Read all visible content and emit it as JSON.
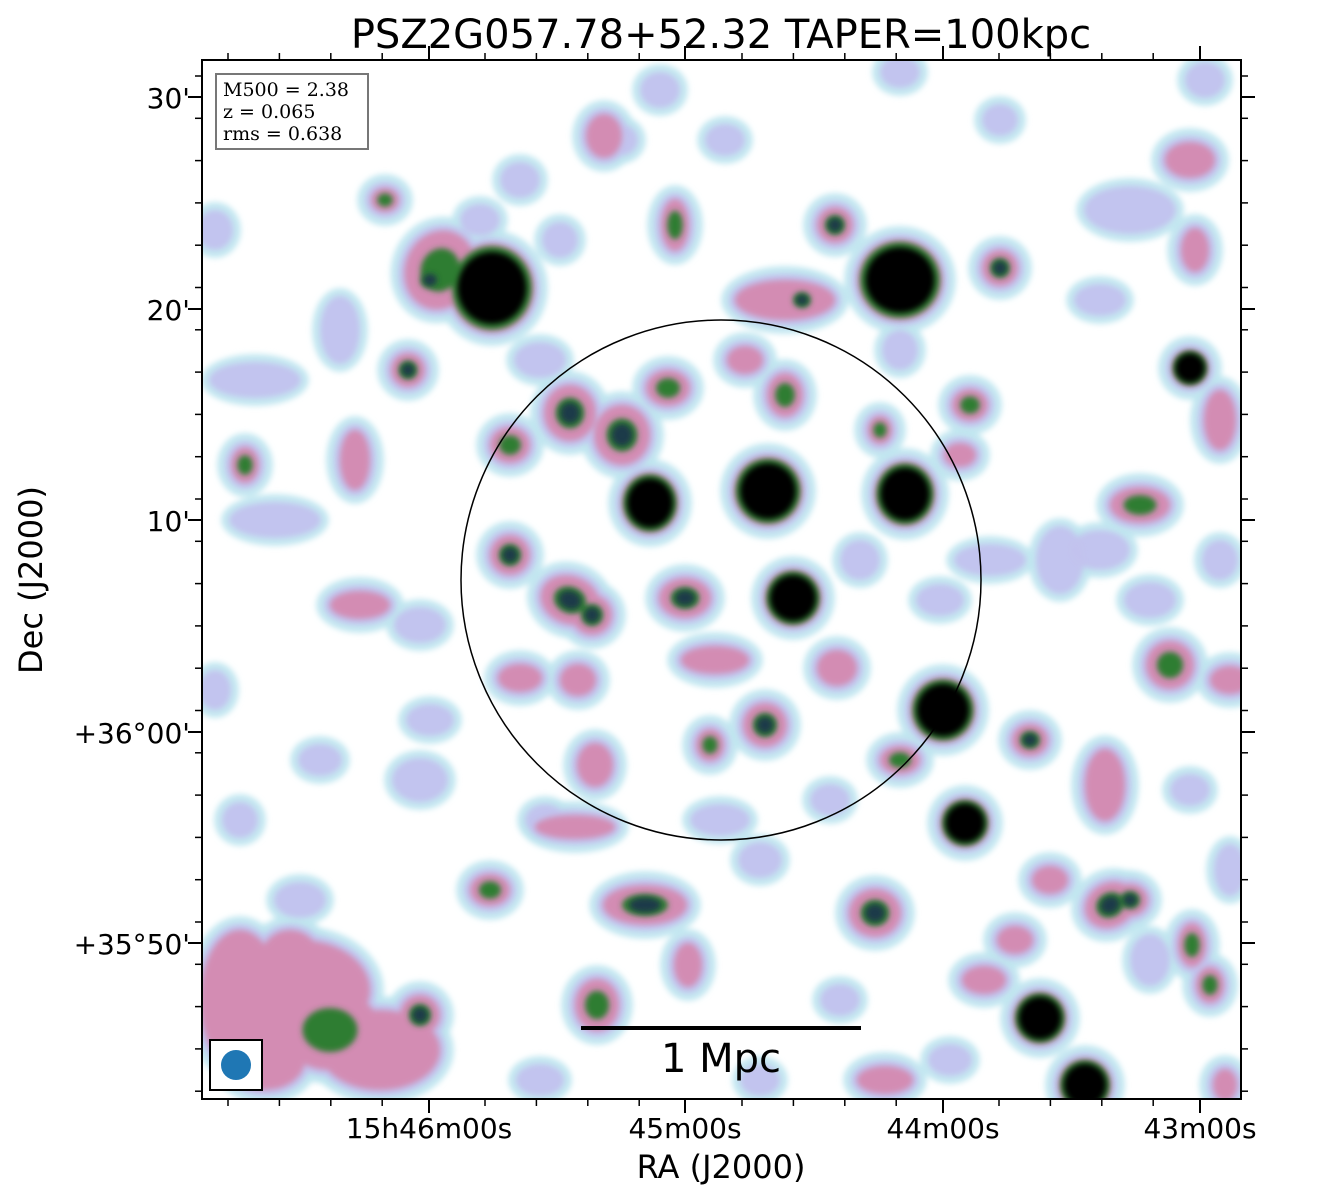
{
  "title": "PSZ2G057.78+52.32 TAPER=100kpc",
  "info_box": {
    "m500": "M500 = 2.38",
    "z": "z = 0.065",
    "rms": "rms = 0.638"
  },
  "x_axis": {
    "label": "RA (J2000)",
    "ticks": [
      "15h46m00s",
      "45m00s",
      "44m00s",
      "43m00s"
    ]
  },
  "y_axis": {
    "label": "Dec (J2000)",
    "ticks": [
      "30'",
      "20'",
      "10'",
      "+36°00'",
      "+35°50'"
    ]
  },
  "scale_bar": {
    "label": "1 Mpc"
  },
  "colors": {
    "faint": "#bfe6ef",
    "low": "#c2c2ee",
    "mid": "#d38cb3",
    "high": "#2e7d32",
    "peak": "#000000",
    "beam": "#1f77b4"
  }
}
